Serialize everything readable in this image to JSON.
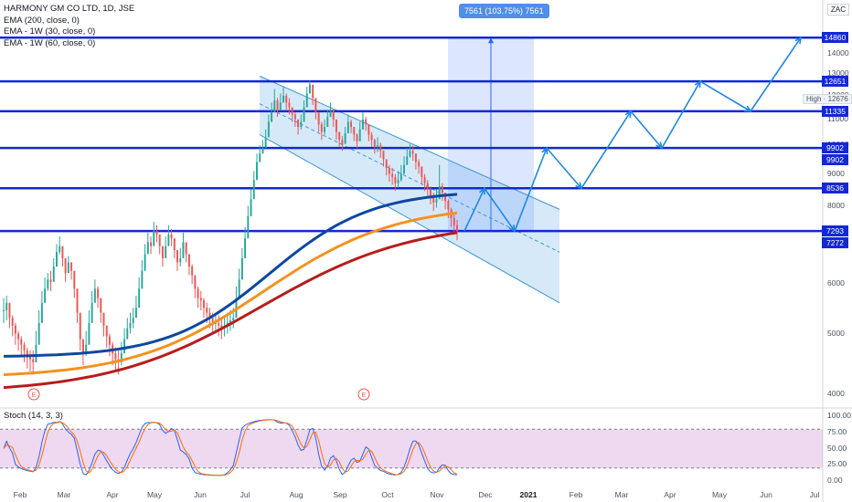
{
  "chart_data": {
    "type": "candlestick",
    "symbol_title": "HARMONY GM CO LTD, 1D, JSE",
    "currency": "ZAC",
    "indicators": [
      {
        "name": "EMA (200, close, 0)",
        "color": "#b71c1c"
      },
      {
        "name": "EMA - 1W (30, close, 0)",
        "color": "#f5921f"
      },
      {
        "name": "EMA - 1W (60, close, 0)",
        "color": "#0d47a1"
      }
    ],
    "price_axis": {
      "ticks": [
        4000,
        5000,
        6000,
        7000,
        8000,
        9000,
        10000,
        11000,
        12000,
        13000,
        14000
      ]
    },
    "time_axis": {
      "labels": [
        "Feb",
        "Mar",
        "Apr",
        "May",
        "Jun",
        "Jul",
        "Aug",
        "Sep",
        "Oct",
        "Nov",
        "Dec",
        "2021",
        "Feb",
        "Mar",
        "Apr",
        "May",
        "Jun",
        "Jul"
      ],
      "bold_label": "2021"
    },
    "horizontal_levels": [
      {
        "value": 14860,
        "label": "14860"
      },
      {
        "value": 12651,
        "label": "12651"
      },
      {
        "value": 11335,
        "label": "11335"
      },
      {
        "value": 9902,
        "label": "9902"
      },
      {
        "value": 8536,
        "label": "8536"
      },
      {
        "value": 7293,
        "label": "7293"
      }
    ],
    "price_markers": [
      {
        "value": 9902,
        "label": "9902"
      },
      {
        "value": 7272,
        "label": "7272"
      }
    ],
    "high": {
      "value": 12676,
      "label": "High · 12676"
    },
    "measure_callout": "7561 (103.75%) 7561",
    "stochastic": {
      "name": "Stoch (14, 3, 3)",
      "upper_band": 80,
      "lower_band": 20,
      "ticks": [
        "100.00",
        "75.00",
        "50.00",
        "25.00",
        "0.00"
      ]
    },
    "price_series": {
      "start_index": 0,
      "closes": [
        5450,
        5600,
        5300,
        5150,
        5000,
        4900,
        4800,
        4700,
        4600,
        4550,
        4500,
        4800,
        5200,
        5600,
        5900,
        6100,
        6050,
        6400,
        6750,
        6900,
        6600,
        6250,
        6500,
        6300,
        5900,
        5400,
        4900,
        4650,
        4800,
        5200,
        5600,
        5900,
        5700,
        5400,
        5150,
        4950,
        4800,
        4650,
        4550,
        4500,
        4650,
        4900,
        5100,
        5200,
        5300,
        5500,
        5900,
        6300,
        6700,
        7000,
        6900,
        7300,
        7200,
        6900,
        6600,
        6900,
        7200,
        7100,
        6800,
        6500,
        6600,
        7000,
        6700,
        6400,
        6200,
        5900,
        5700,
        5650,
        5500,
        5400,
        5300,
        5200,
        5200,
        5150,
        5100,
        5150,
        5200,
        5250,
        5300,
        5700,
        6100,
        6600,
        7100,
        7700,
        8200,
        8800,
        9400,
        9700,
        9900,
        10300,
        10900,
        11300,
        11800,
        11400,
        11700,
        12000,
        11700,
        11500,
        11200,
        11000,
        10700,
        10900,
        11500,
        12100,
        12500,
        11900,
        11300,
        10800,
        10500,
        10700,
        11100,
        11400,
        11000,
        10500,
        10200,
        10050,
        10450,
        10900,
        10700,
        10400,
        10150,
        10600,
        11000,
        10800,
        10400,
        10200,
        9950,
        10000,
        9800,
        9500,
        9200,
        9000,
        8900,
        8700,
        8800,
        9000,
        9300,
        9600,
        9800,
        9700,
        9400,
        9250,
        8900,
        8700,
        8500,
        8300,
        8100,
        8200,
        8600,
        8400,
        8150,
        7900,
        7650,
        7450,
        7293
      ],
      "highs": [
        5700,
        5750,
        5600,
        5350,
        5200,
        5050,
        4950,
        4850,
        4750,
        4700,
        4700,
        5050,
        5450,
        5850,
        6150,
        6250,
        6300,
        6600,
        6950,
        7150,
        6850,
        6500,
        6650,
        6500,
        6100,
        5700,
        5200,
        4900,
        5050,
        5450,
        5850,
        6100,
        5950,
        5650,
        5350,
        5150,
        5000,
        4850,
        4750,
        4700,
        4850,
        5100,
        5300,
        5400,
        5500,
        5750,
        6150,
        6550,
        6950,
        7250,
        7150,
        7550,
        7450,
        7150,
        6850,
        7150,
        7450,
        7350,
        7050,
        6750,
        6850,
        7250,
        6950,
        6650,
        6450,
        6150,
        5950,
        5850,
        5700,
        5600,
        5500,
        5400,
        5400,
        5350,
        5300,
        5350,
        5400,
        5450,
        5500,
        5950,
        6350,
        6850,
        7400,
        8000,
        8500,
        9100,
        9700,
        10000,
        10200,
        10600,
        11200,
        11700,
        12300,
        11900,
        12100,
        12400,
        12100,
        11900,
        11500,
        11300,
        11000,
        11200,
        11800,
        12400,
        12676,
        12300,
        11700,
        11200,
        10900,
        11000,
        11400,
        11700,
        11400,
        10900,
        10500,
        10350,
        10700,
        11200,
        11000,
        10700,
        10450,
        10900,
        11300,
        11100,
        10700,
        10500,
        10250,
        10300,
        10100,
        9800,
        9500,
        9300,
        9200,
        9000,
        9100,
        9300,
        9600,
        9900,
        10050,
        10000,
        9700,
        9500,
        9200,
        9000,
        8800,
        8600,
        8400,
        8500,
        9300,
        8700,
        8400,
        8200,
        7950,
        7750,
        7600
      ],
      "lows": [
        5200,
        5250,
        5100,
        4950,
        4800,
        4700,
        4600,
        4500,
        4400,
        4350,
        4300,
        4600,
        5000,
        5350,
        5700,
        5850,
        5850,
        6200,
        6500,
        6700,
        6400,
        6050,
        6250,
        6100,
        5700,
        5200,
        4700,
        4450,
        4600,
        5000,
        5400,
        5700,
        5500,
        5200,
        4950,
        4750,
        4600,
        4450,
        4350,
        4300,
        4450,
        4700,
        4900,
        5000,
        5100,
        5300,
        5700,
        6100,
        6500,
        6800,
        6700,
        7100,
        7000,
        6700,
        6400,
        6700,
        7000,
        6900,
        6600,
        6300,
        6400,
        6800,
        6500,
        6200,
        6000,
        5700,
        5500,
        5450,
        5300,
        5200,
        5100,
        5000,
        5000,
        4950,
        4900,
        4950,
        5000,
        5050,
        5100,
        5500,
        5900,
        6400,
        6900,
        7500,
        8000,
        8600,
        9200,
        9500,
        9700,
        10100,
        10600,
        11000,
        11500,
        11100,
        11400,
        11700,
        11400,
        11200,
        10900,
        10700,
        10400,
        10600,
        11200,
        11800,
        12200,
        11600,
        11000,
        10500,
        10200,
        10400,
        10800,
        11100,
        10700,
        10200,
        9950,
        9800,
        10200,
        10650,
        10450,
        10150,
        9900,
        10350,
        10750,
        10550,
        10150,
        9950,
        9700,
        9750,
        9550,
        9250,
        8950,
        8750,
        8650,
        8450,
        8550,
        8750,
        9050,
        9350,
        9550,
        9450,
        9150,
        9000,
        8650,
        8450,
        8250,
        8050,
        7850,
        7950,
        8350,
        8150,
        7900,
        7650,
        7400,
        7200,
        7050
      ]
    },
    "ema200": {
      "start_value": 4100,
      "end_value": 7250
    },
    "ema30w": {
      "start_value": 4300,
      "end_value": 7800
    },
    "ema60w": {
      "start_value": 4600,
      "end_value": 8350
    },
    "channel": {
      "upper_start": 12900,
      "upper_end": 7900,
      "lower_start": 10400,
      "lower_end": 5600,
      "mid_start": 11650,
      "mid_end": 6750
    },
    "projection_path": [
      7293,
      8536,
      7293,
      9902,
      8536,
      11335,
      9902,
      12651,
      11335,
      14860
    ]
  }
}
